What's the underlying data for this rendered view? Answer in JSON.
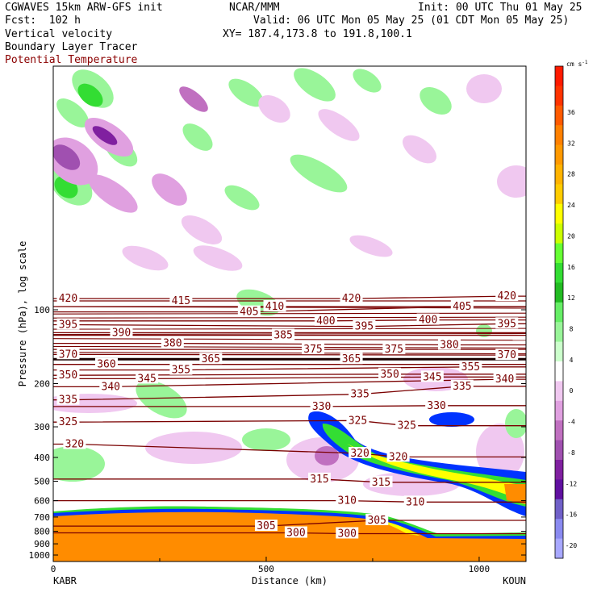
{
  "header": {
    "model": "CGWAVES 15km ARW-GFS init",
    "forecast": "Fcst:  102 h",
    "field1": "Vertical velocity",
    "field2": "Boundary Layer Tracer",
    "field3": "Potential Temperature",
    "center": "NCAR/MMM",
    "init": "Init: 00 UTC Thu 01 May 25",
    "valid": "Valid: 06 UTC Mon 05 May 25 (01 CDT Mon 05 May 25)",
    "xy": "XY= 187.4,173.8 to 191.8,100.1"
  },
  "colors": {
    "theta_line": "#7a0000",
    "theta_label": "#7a0000",
    "tracer_orange": "#ff8c00",
    "tracer_green": "#33cc33",
    "tracer_blue": "#0033ff"
  },
  "chart_data": {
    "type": "heatmap",
    "title": "Vertical velocity / Boundary Layer Tracer / Potential Temperature cross section",
    "xlabel": "Distance (km)",
    "ylabel": "Pressure (hPa), log scale",
    "x_ticks": [
      0,
      500,
      1000
    ],
    "xlim": [
      0,
      1110
    ],
    "y_ticks": [
      100,
      200,
      300,
      400,
      500,
      600,
      700,
      800,
      900,
      1000
    ],
    "ylim": [
      1000,
      10
    ],
    "y_scale": "log",
    "endpoints": {
      "left": "KABR",
      "right": "KOUN"
    },
    "colorbar": {
      "unit": "cm s",
      "unit_sup": "-1",
      "ticks": [
        36,
        32,
        28,
        24,
        20,
        16,
        12,
        8,
        4,
        0,
        -4,
        -8,
        -12,
        -16,
        -20
      ],
      "colors": [
        "#ff1a00",
        "#ff3300",
        "#ff5a00",
        "#ff8000",
        "#ff9900",
        "#ffb300",
        "#ffcc00",
        "#ffff00",
        "#ccff00",
        "#66ff33",
        "#33dd33",
        "#22bb22",
        "#66ee66",
        "#99f599",
        "#ccffcc",
        "#ffffff",
        "#f0c8f0",
        "#e0a0e0",
        "#c070c0",
        "#a050b0",
        "#8020a0",
        "#6010a0",
        "#7060c8",
        "#8a8af0",
        "#a8a8ff"
      ]
    },
    "theta_labels": [
      {
        "x": 35,
        "p": 90,
        "v": "420"
      },
      {
        "x": 300,
        "p": 92,
        "v": "415"
      },
      {
        "x": 520,
        "p": 97,
        "v": "410"
      },
      {
        "x": 460,
        "p": 102,
        "v": "405"
      },
      {
        "x": 700,
        "p": 90,
        "v": "420"
      },
      {
        "x": 960,
        "p": 97,
        "v": "405"
      },
      {
        "x": 1065,
        "p": 88,
        "v": "420"
      },
      {
        "x": 35,
        "p": 115,
        "v": "395"
      },
      {
        "x": 160,
        "p": 124,
        "v": "390"
      },
      {
        "x": 640,
        "p": 111,
        "v": "400"
      },
      {
        "x": 730,
        "p": 117,
        "v": "395"
      },
      {
        "x": 880,
        "p": 110,
        "v": "400"
      },
      {
        "x": 1065,
        "p": 114,
        "v": "395"
      },
      {
        "x": 280,
        "p": 137,
        "v": "380"
      },
      {
        "x": 540,
        "p": 127,
        "v": "385"
      },
      {
        "x": 610,
        "p": 145,
        "v": "375"
      },
      {
        "x": 800,
        "p": 145,
        "v": "375"
      },
      {
        "x": 930,
        "p": 139,
        "v": "380"
      },
      {
        "x": 35,
        "p": 152,
        "v": "370"
      },
      {
        "x": 1065,
        "p": 153,
        "v": "370"
      },
      {
        "x": 125,
        "p": 167,
        "v": "360"
      },
      {
        "x": 370,
        "p": 159,
        "v": "365"
      },
      {
        "x": 700,
        "p": 159,
        "v": "365"
      },
      {
        "x": 300,
        "p": 176,
        "v": "355"
      },
      {
        "x": 980,
        "p": 171,
        "v": "355"
      },
      {
        "x": 35,
        "p": 185,
        "v": "350"
      },
      {
        "x": 220,
        "p": 191,
        "v": "345"
      },
      {
        "x": 790,
        "p": 183,
        "v": "350"
      },
      {
        "x": 890,
        "p": 188,
        "v": "345"
      },
      {
        "x": 1060,
        "p": 192,
        "v": "340"
      },
      {
        "x": 135,
        "p": 206,
        "v": "340"
      },
      {
        "x": 35,
        "p": 233,
        "v": "335"
      },
      {
        "x": 720,
        "p": 221,
        "v": "335"
      },
      {
        "x": 960,
        "p": 205,
        "v": "335"
      },
      {
        "x": 630,
        "p": 248,
        "v": "330"
      },
      {
        "x": 900,
        "p": 246,
        "v": "330"
      },
      {
        "x": 35,
        "p": 287,
        "v": "325"
      },
      {
        "x": 715,
        "p": 283,
        "v": "325"
      },
      {
        "x": 830,
        "p": 297,
        "v": "325"
      },
      {
        "x": 50,
        "p": 353,
        "v": "320"
      },
      {
        "x": 720,
        "p": 385,
        "v": "320"
      },
      {
        "x": 810,
        "p": 398,
        "v": "320"
      },
      {
        "x": 625,
        "p": 490,
        "v": "315"
      },
      {
        "x": 770,
        "p": 505,
        "v": "315"
      },
      {
        "x": 690,
        "p": 600,
        "v": "310"
      },
      {
        "x": 850,
        "p": 608,
        "v": "310"
      },
      {
        "x": 500,
        "p": 762,
        "v": "305"
      },
      {
        "x": 760,
        "p": 722,
        "v": "305"
      },
      {
        "x": 570,
        "p": 812,
        "v": "300"
      },
      {
        "x": 690,
        "p": 818,
        "v": "300"
      }
    ]
  }
}
